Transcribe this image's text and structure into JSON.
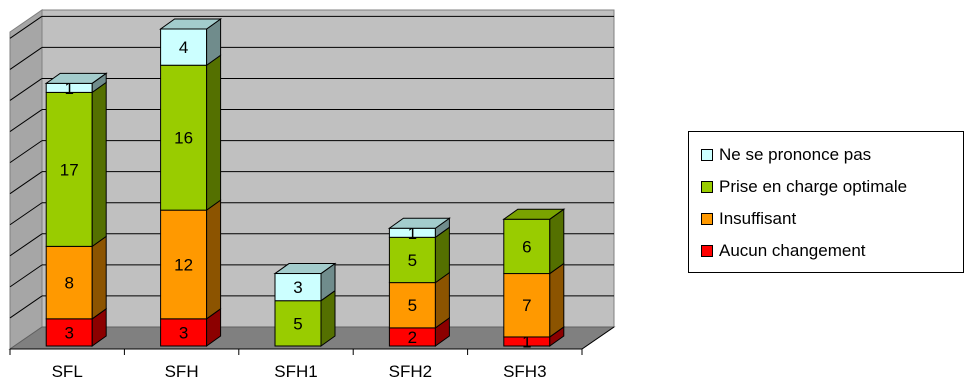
{
  "chart_data": {
    "type": "bar",
    "stacked": true,
    "three_d": true,
    "categories": [
      "SFL",
      "SFH",
      "SFH1",
      "SFH2",
      "SFH3"
    ],
    "series": [
      {
        "name": "Aucun changement",
        "color": "#ff0000",
        "values": [
          3,
          3,
          0,
          2,
          1
        ]
      },
      {
        "name": "Insuffisant",
        "color": "#ff9900",
        "values": [
          8,
          12,
          0,
          5,
          7
        ]
      },
      {
        "name": "Prise en charge optimale",
        "color": "#99cc00",
        "values": [
          17,
          16,
          5,
          5,
          6
        ]
      },
      {
        "name": "Ne se prononce pas",
        "color": "#ccffff",
        "values": [
          1,
          4,
          3,
          1,
          0
        ]
      }
    ],
    "data_labels": true,
    "legend_order": [
      "Ne se prononce pas",
      "Prise en charge optimale",
      "Insuffisant",
      "Aucun changement"
    ],
    "legend_position": "right",
    "grid": true,
    "wall_color": "#c0c0c0",
    "floor_color": "#808080"
  }
}
